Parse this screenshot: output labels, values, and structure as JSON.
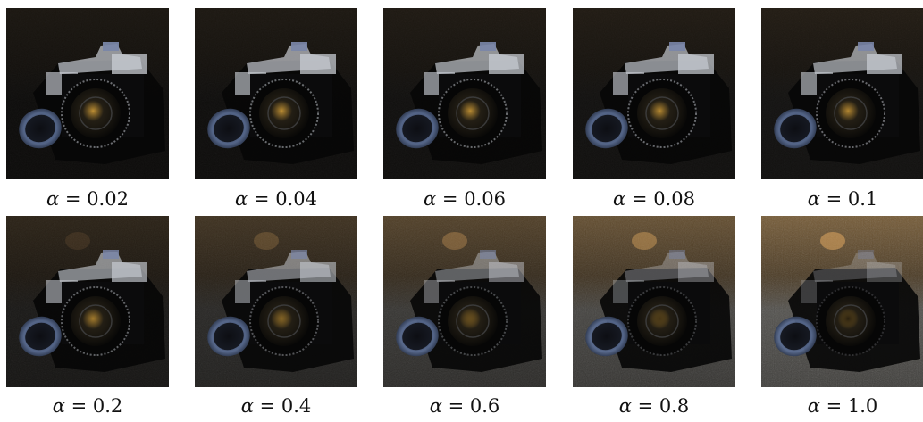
{
  "symbol": "α",
  "eq": " = ",
  "panels": [
    {
      "alpha": "0.02",
      "background_level": 0.02
    },
    {
      "alpha": "0.04",
      "background_level": 0.04
    },
    {
      "alpha": "0.06",
      "background_level": 0.06
    },
    {
      "alpha": "0.08",
      "background_level": 0.08
    },
    {
      "alpha": "0.1",
      "background_level": 0.1
    },
    {
      "alpha": "0.2",
      "background_level": 0.2
    },
    {
      "alpha": "0.4",
      "background_level": 0.4
    },
    {
      "alpha": "0.6",
      "background_level": 0.6
    },
    {
      "alpha": "0.8",
      "background_level": 0.8
    },
    {
      "alpha": "1.0",
      "background_level": 1.0
    }
  ],
  "colors": {
    "dark": "#0a0908",
    "warm_texture": "#8a6a3e",
    "grey_texture": "#8c8a84",
    "chrome": "#c9cdd4",
    "lens_glint": "#d6a13a",
    "filter_blue": "#5c6f96"
  }
}
